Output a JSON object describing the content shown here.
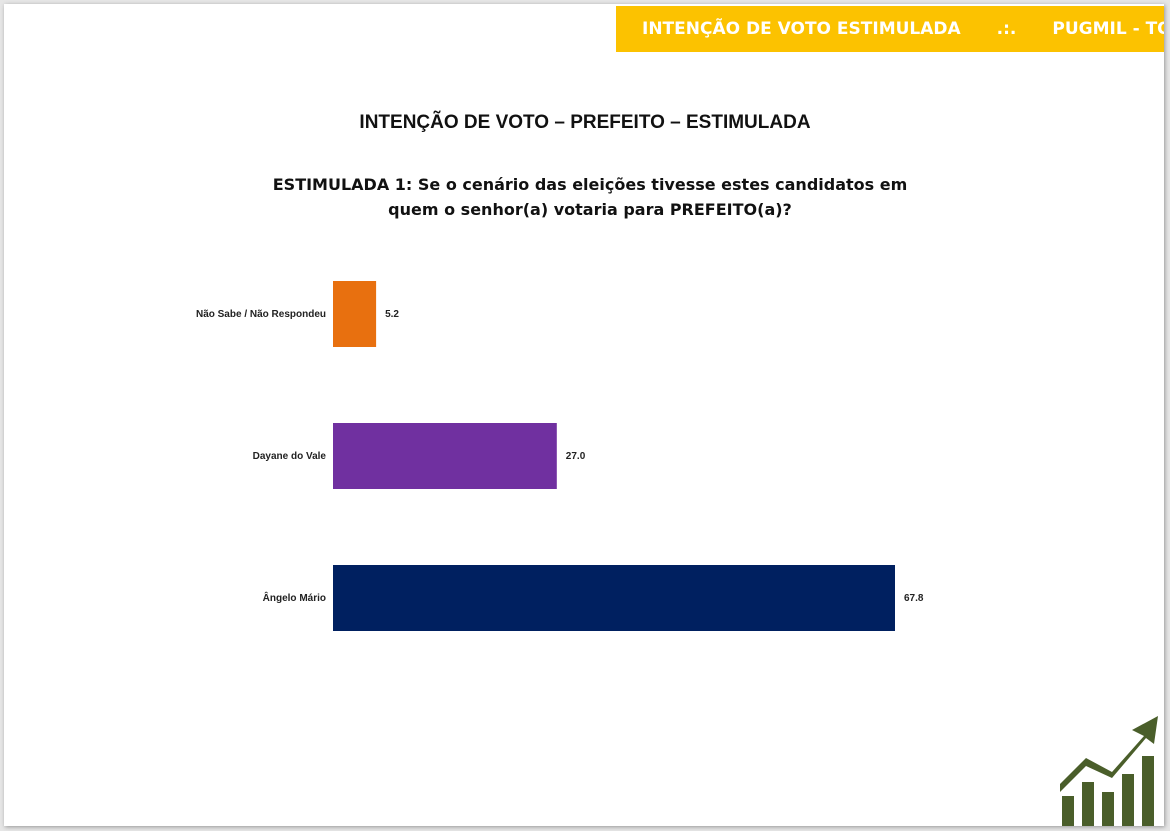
{
  "header": {
    "left": "INTENÇÃO DE VOTO ESTIMULADA",
    "separator": ".:.",
    "right": "PUGMIL - TO",
    "color": "#fcc200"
  },
  "page_title": "INTENÇÃO DE VOTO – PREFEITO – ESTIMULADA",
  "question": {
    "line1": "ESTIMULADA 1: Se o cenário das eleições tivesse estes candidatos em",
    "line2": "quem o senhor(a) votaria para PREFEITO(a)?"
  },
  "logo_icon": "growth-chart-logo-icon",
  "chart_data": {
    "type": "bar",
    "orientation": "horizontal",
    "categories": [
      "Não Sabe / Não Respondeu",
      "Dayane do Vale",
      "Ângelo Mário"
    ],
    "values": [
      5.2,
      27.0,
      67.8
    ],
    "value_labels": [
      "5.2",
      "27.0",
      "67.8"
    ],
    "colors": [
      "#e8700f",
      "#7030a0",
      "#002060"
    ],
    "xlim": [
      0,
      67.8
    ],
    "grid": false,
    "legend": "none"
  }
}
